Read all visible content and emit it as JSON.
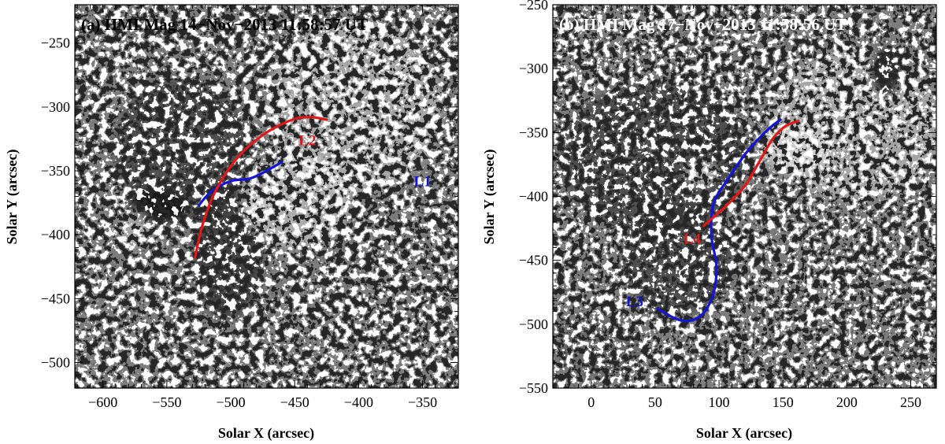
{
  "panels": [
    {
      "id": "a",
      "title": "(a) HMI Mag 14−Nov−2013 11:58:57 UT",
      "xlabel": "Solar X (arcsec)",
      "ylabel": "Solar Y (arcsec)",
      "xlim": [
        -622,
        -322
      ],
      "ylim": [
        -520,
        -220
      ],
      "xticks": [
        -600,
        -550,
        -500,
        -450,
        -400,
        -350
      ],
      "yticks": [
        -250,
        -300,
        -350,
        -400,
        -450,
        -500
      ],
      "xticklabels": [
        "−600",
        "−550",
        "−500",
        "−450",
        "−400",
        "−350"
      ],
      "yticklabels": [
        "−250",
        "−300",
        "−350",
        "−400",
        "−450",
        "−500"
      ],
      "loops": [
        {
          "name": "L1",
          "color": "#1515d8",
          "label_at": [
            -350,
            -362
          ],
          "points": [
            [
              -525,
              -377
            ],
            [
              -515,
              -366
            ],
            [
              -500,
              -358
            ],
            [
              -485,
              -356
            ],
            [
              -472,
              -350
            ],
            [
              -460,
              -343
            ]
          ]
        },
        {
          "name": "L2",
          "color": "#e01818",
          "label_at": [
            -440,
            -330
          ],
          "points": [
            [
              -528,
              -418
            ],
            [
              -522,
              -392
            ],
            [
              -512,
              -366
            ],
            [
              -495,
              -340
            ],
            [
              -475,
              -322
            ],
            [
              -452,
              -310
            ],
            [
              -437,
              -308
            ],
            [
              -425,
              -310
            ]
          ]
        }
      ]
    },
    {
      "id": "b",
      "title": "(b) HMI Mag 17−Nov−2013 11:58:56 UT",
      "xlabel": "Solar X (arcsec)",
      "ylabel": "Solar Y (arcsec)",
      "xlim": [
        -30,
        270
      ],
      "ylim": [
        -550,
        -250
      ],
      "xticks": [
        0,
        50,
        100,
        150,
        200,
        250
      ],
      "yticks": [
        -250,
        -300,
        -350,
        -400,
        -450,
        -500,
        -550
      ],
      "xticklabels": [
        "0",
        "50",
        "100",
        "150",
        "200",
        "250"
      ],
      "yticklabels": [
        "−250",
        "−300",
        "−350",
        "−400",
        "−450",
        "−500",
        "−550"
      ],
      "loops": [
        {
          "name": "L3",
          "color": "#1515d8",
          "label_at": [
            34,
            -486
          ],
          "points": [
            [
              52,
              -488
            ],
            [
              70,
              -497
            ],
            [
              85,
              -494
            ],
            [
              95,
              -478
            ],
            [
              98,
              -455
            ],
            [
              94,
              -430
            ],
            [
              96,
              -405
            ],
            [
              108,
              -385
            ],
            [
              122,
              -365
            ],
            [
              138,
              -348
            ],
            [
              148,
              -340
            ]
          ]
        },
        {
          "name": "L4",
          "color": "#e01818",
          "label_at": [
            79,
            -437
          ],
          "points": [
            [
              88,
              -423
            ],
            [
              105,
              -408
            ],
            [
              120,
              -392
            ],
            [
              132,
              -372
            ],
            [
              142,
              -355
            ],
            [
              152,
              -345
            ],
            [
              162,
              -341
            ]
          ]
        }
      ]
    }
  ]
}
